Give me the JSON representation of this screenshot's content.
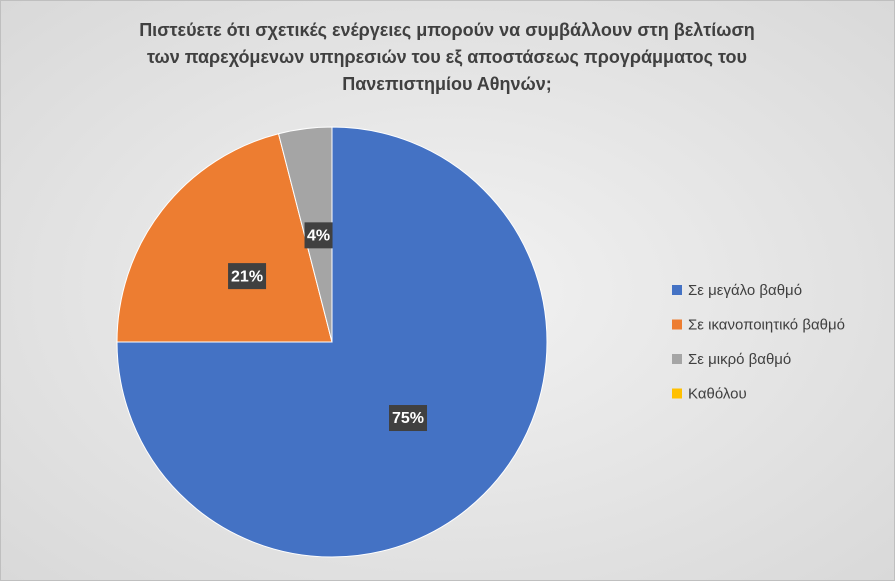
{
  "chart_data": {
    "type": "pie",
    "title": [
      "Πιστεύετε ότι σχετικές ενέργειες μπορούν να συμβάλλουν στη βελτίωση",
      "των παρεχόμενων υπηρεσιών του εξ αποστάσεως προγράμματος του",
      "Πανεπιστημίου Αθηνών;"
    ],
    "categories": [
      "Σε μεγάλο βαθμό",
      "Σε ικανοποιητικό βαθμό",
      "Σε μικρό βαθμό",
      "Καθόλου"
    ],
    "values": [
      75,
      21,
      4,
      0
    ],
    "value_labels": [
      "75%",
      "21%",
      "4%",
      null
    ],
    "colors": [
      "#4472c4",
      "#ed7d31",
      "#a5a5a5",
      "#ffc000"
    ],
    "legend": "right"
  }
}
